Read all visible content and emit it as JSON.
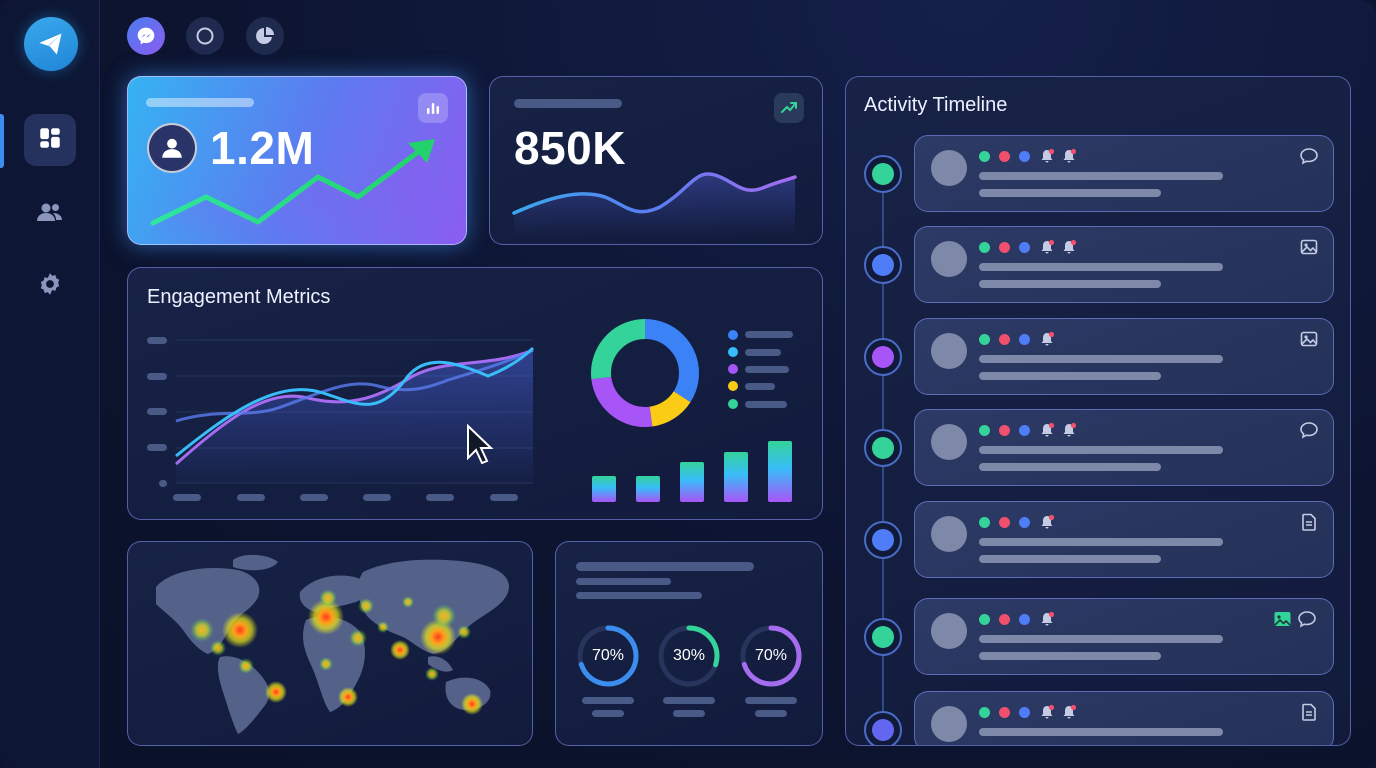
{
  "nav": {
    "logo_icon": "paper-plane-icon",
    "items": [
      {
        "icon": "dashboard-grid-icon",
        "active": true
      },
      {
        "icon": "users-icon",
        "active": false
      },
      {
        "icon": "gear-icon",
        "active": false
      }
    ],
    "top_icons": [
      "messenger-icon",
      "circle-status-icon",
      "pie-chart-icon"
    ]
  },
  "stat_cards": [
    {
      "value": "1.2M",
      "icon": "bar-chart-icon",
      "avatar_icon": "user-icon"
    },
    {
      "value": "850K",
      "icon": "trend-up-icon"
    }
  ],
  "engagement": {
    "title": "Engagement Metrics",
    "legend_colors": [
      "#3b82f6",
      "#38bdf8",
      "#a855f7",
      "#facc15",
      "#34d399"
    ]
  },
  "gauges": [
    {
      "label": "70%",
      "value": 0.7,
      "color": "#3b8ef0"
    },
    {
      "label": "30%",
      "value": 0.3,
      "color": "#34d399"
    },
    {
      "label": "70%",
      "value": 0.7,
      "color": "#a66cf0"
    }
  ],
  "timeline": {
    "title": "Activity Timeline",
    "items": [
      {
        "node_color": "#34d399",
        "icon": "chat-bubble-icon",
        "reactions": 2
      },
      {
        "node_color": "#4f7cf7",
        "icon": "image-icon",
        "reactions": 2
      },
      {
        "node_color": "#a855f7",
        "icon": "image-icon",
        "reactions": 1
      },
      {
        "node_color": "#34d399",
        "icon": "chat-bubble-icon",
        "reactions": 2
      },
      {
        "node_color": "#4f7cf7",
        "icon": "document-icon",
        "reactions": 1
      },
      {
        "node_color": "#34d399",
        "icon": "image-chat-icon",
        "reactions": 1
      },
      {
        "node_color": "#6366f1",
        "icon": "document-icon",
        "reactions": 2
      }
    ]
  }
}
